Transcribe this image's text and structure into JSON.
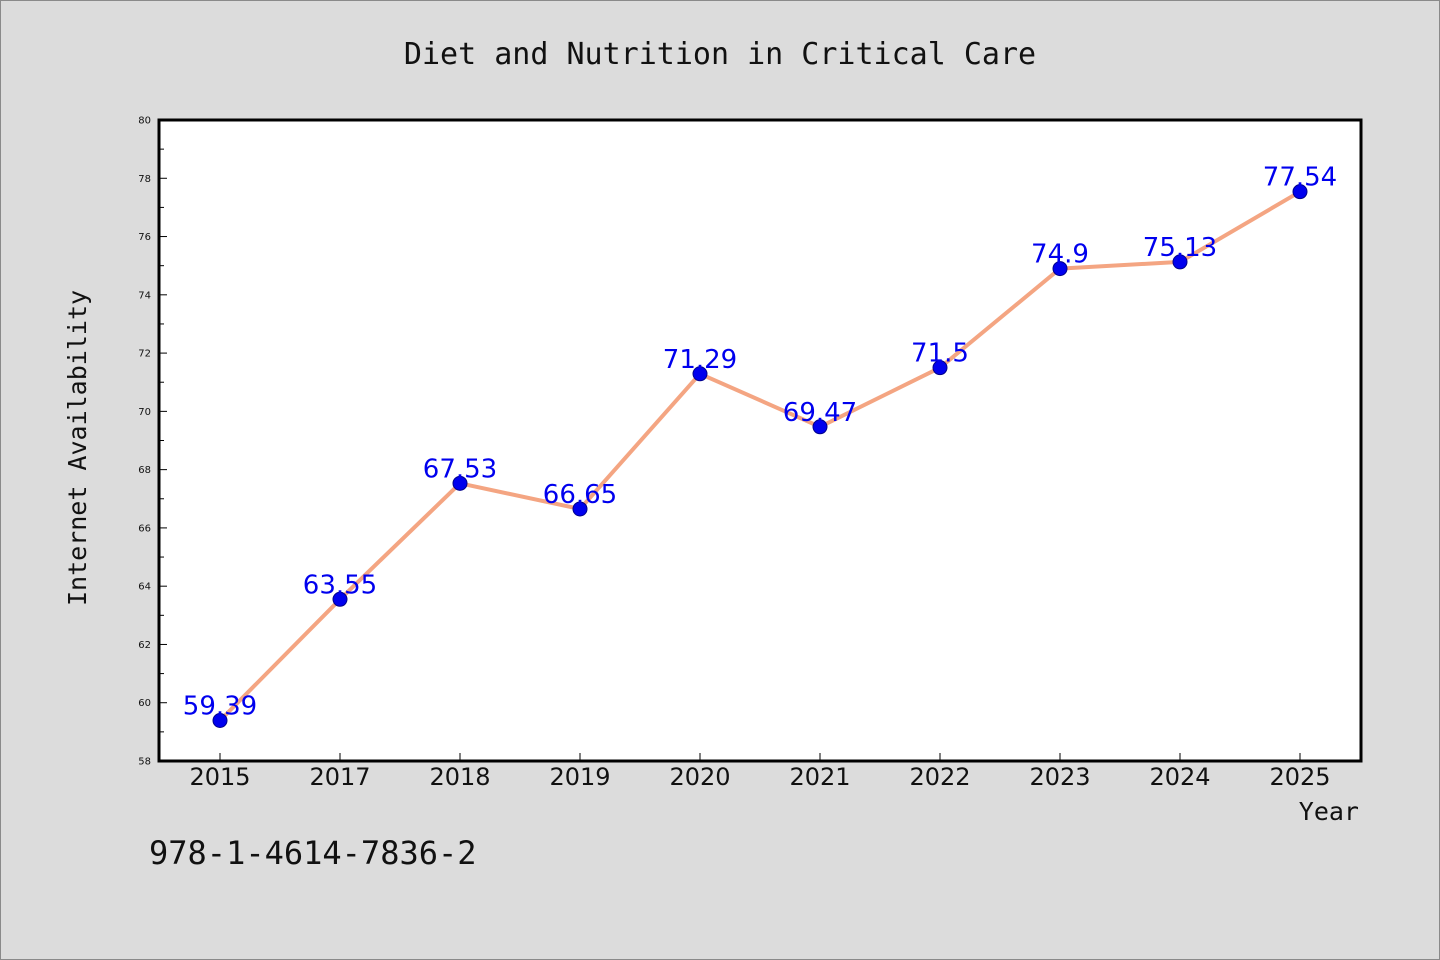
{
  "chart_data": {
    "type": "line",
    "title": "Diet and Nutrition in Critical Care",
    "xlabel": "Year",
    "ylabel": "Internet Availability",
    "categories": [
      "2015",
      "2017",
      "2018",
      "2019",
      "2020",
      "2021",
      "2022",
      "2023",
      "2024",
      "2025"
    ],
    "series": [
      {
        "values": [
          59.39,
          63.55,
          67.53,
          66.65,
          71.29,
          69.47,
          71.5,
          74.9,
          75.13,
          77.54
        ]
      }
    ],
    "data_labels": [
      "59.39",
      "63.55",
      "67.53",
      "66.65",
      "71.29",
      "69.47",
      "71.5",
      "74.9",
      "75.13",
      "77.54"
    ],
    "ylim": [
      58,
      80
    ],
    "yticks": [
      "58",
      "60",
      "62",
      "64",
      "66",
      "68",
      "70",
      "72",
      "74",
      "76",
      "78",
      "80"
    ],
    "grid": false,
    "line_color": "#f4a582",
    "marker_color": "#0000ee",
    "label_color": "#0000ee",
    "background_color": "#dcdcdc",
    "plot_background": "#ffffff"
  },
  "footer": {
    "isbn": "978-1-4614-7836-2"
  }
}
